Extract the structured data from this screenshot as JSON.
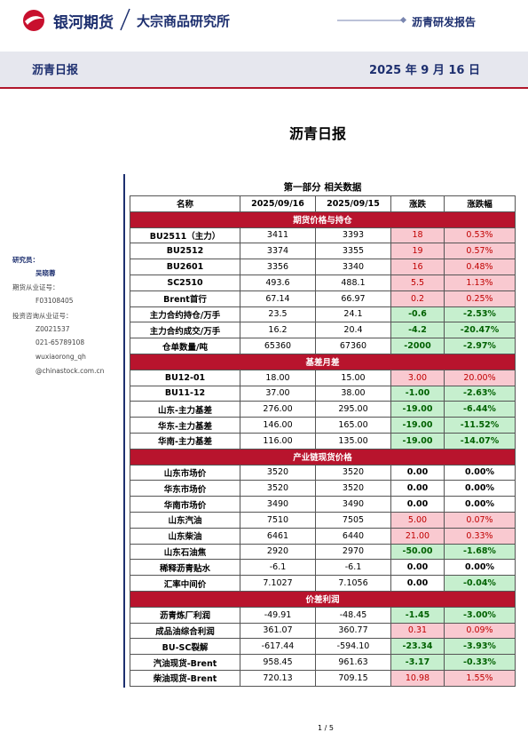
{
  "header": {
    "brand": "银河期货",
    "institute": "大宗商品研究所",
    "report_type": "沥青研发报告"
  },
  "subheader": {
    "title": "沥青日报",
    "date": "2025 年 9 月 16 日"
  },
  "title": "沥青日报",
  "sidebar": {
    "researcher_label": "研究员：",
    "researcher": "吴晓蓉",
    "futures_license_label": "期货从业证号：",
    "futures_license": "F03108405",
    "advisory_license_label": "投资咨询从业证号：",
    "advisory_license": "Z0021537",
    "phone": "021-65789108",
    "email_user": "wuxiaorong_qh",
    "email_domain": "@chinastock.com.cn"
  },
  "table": {
    "title": "第一部分 相关数据",
    "header": [
      "名称",
      "2025/09/16",
      "2025/09/15",
      "涨跌",
      "涨跌幅"
    ],
    "groups": [
      {
        "title": "期货价格与持仓",
        "rows": [
          [
            "BU2511（主力）",
            "3411",
            "3393",
            "18",
            "0.53%"
          ],
          [
            "BU2512",
            "3374",
            "3355",
            "19",
            "0.57%"
          ],
          [
            "BU2601",
            "3356",
            "3340",
            "16",
            "0.48%"
          ],
          [
            "SC2510",
            "493.6",
            "488.1",
            "5.5",
            "1.13%"
          ],
          [
            "Brent首行",
            "67.14",
            "66.97",
            "0.2",
            "0.25%"
          ],
          [
            "主力合约持仓/万手",
            "23.5",
            "24.1",
            "-0.6",
            "-2.53%"
          ],
          [
            "主力合约成交/万手",
            "16.2",
            "20.4",
            "-4.2",
            "-20.47%"
          ],
          [
            "仓单数量/吨",
            "65360",
            "67360",
            "-2000",
            "-2.97%"
          ]
        ]
      },
      {
        "title": "基差月差",
        "rows": [
          [
            "BU12-01",
            "18.00",
            "15.00",
            "3.00",
            "20.00%"
          ],
          [
            "BU11-12",
            "37.00",
            "38.00",
            "-1.00",
            "-2.63%"
          ],
          [
            "山东-主力基差",
            "276.00",
            "295.00",
            "-19.00",
            "-6.44%"
          ],
          [
            "华东-主力基差",
            "146.00",
            "165.00",
            "-19.00",
            "-11.52%"
          ],
          [
            "华南-主力基差",
            "116.00",
            "135.00",
            "-19.00",
            "-14.07%"
          ]
        ]
      },
      {
        "title": "产业链现货价格",
        "rows": [
          [
            "山东市场价",
            "3520",
            "3520",
            "0.00",
            "0.00%"
          ],
          [
            "华东市场价",
            "3520",
            "3520",
            "0.00",
            "0.00%"
          ],
          [
            "华南市场价",
            "3490",
            "3490",
            "0.00",
            "0.00%"
          ],
          [
            "山东汽油",
            "7510",
            "7505",
            "5.00",
            "0.07%"
          ],
          [
            "山东柴油",
            "6461",
            "6440",
            "21.00",
            "0.33%"
          ],
          [
            "山东石油焦",
            "2920",
            "2970",
            "-50.00",
            "-1.68%"
          ],
          [
            "稀释沥青贴水",
            "-6.1",
            "-6.1",
            "0.00",
            "0.00%"
          ],
          [
            "汇率中间价",
            "7.1027",
            "7.1056",
            "0.00",
            "-0.04%"
          ]
        ]
      },
      {
        "title": "价差利润",
        "rows": [
          [
            "沥青炼厂利润",
            "-49.91",
            "-48.45",
            "-1.45",
            "-3.00%"
          ],
          [
            "成品油综合利润",
            "361.07",
            "360.77",
            "0.31",
            "0.09%"
          ],
          [
            "BU-SC裂解",
            "-617.44",
            "-594.10",
            "-23.34",
            "-3.93%"
          ],
          [
            "汽油现货-Brent",
            "958.45",
            "961.63",
            "-3.17",
            "-0.33%"
          ],
          [
            "柴油现货-Brent",
            "720.13",
            "709.15",
            "10.98",
            "1.55%"
          ]
        ]
      }
    ]
  },
  "footer": {
    "page": "1 / 5"
  }
}
